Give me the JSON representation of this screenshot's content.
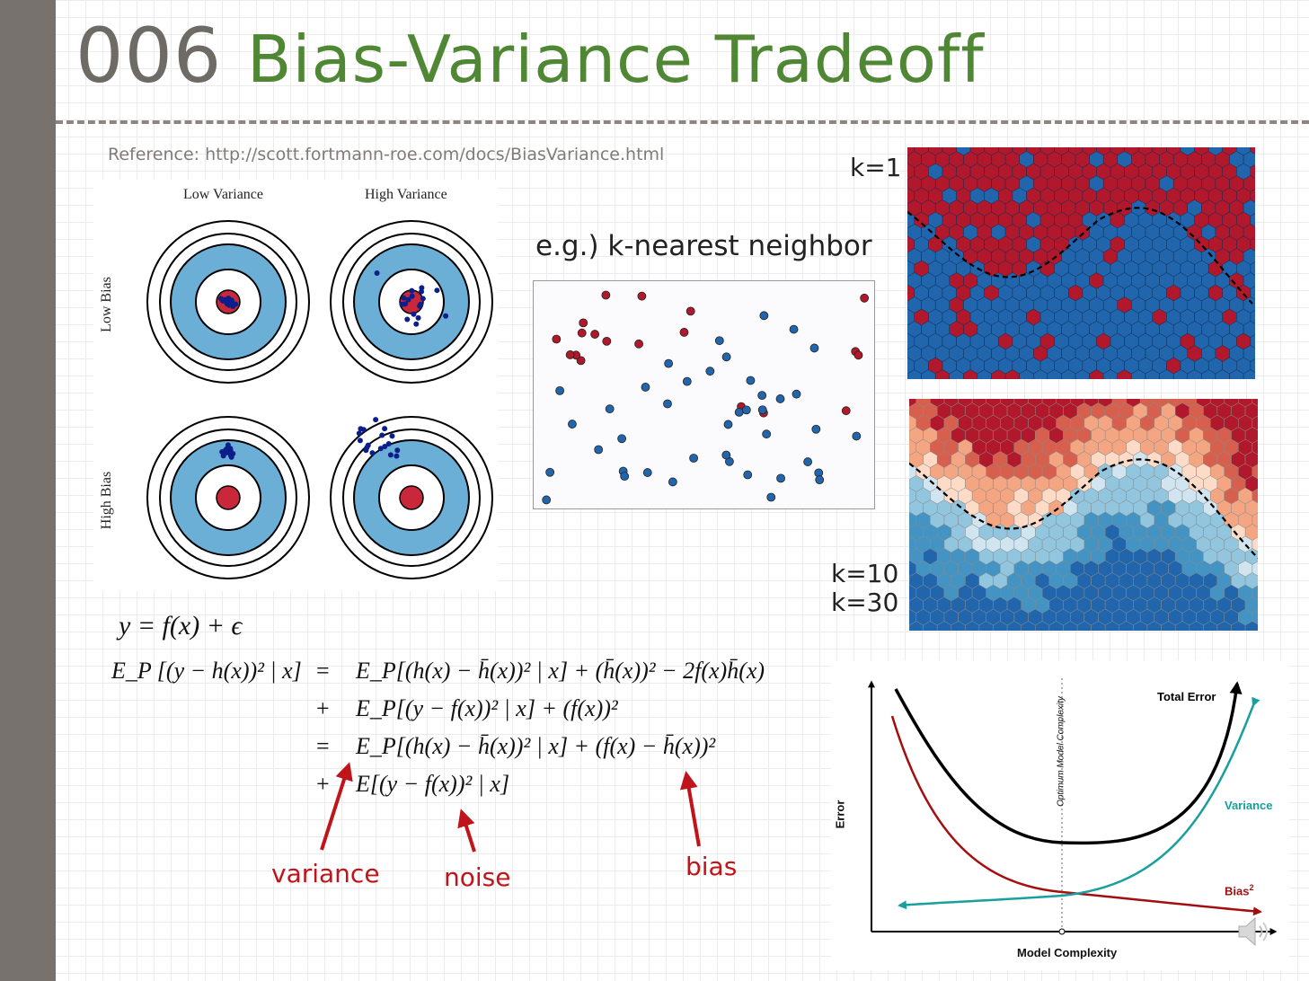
{
  "slide": {
    "number": "006",
    "title": "Bias-Variance Tradeoff",
    "reference": "Reference: http://scott.fortmann-roe.com/docs/BiasVariance.html"
  },
  "targets": {
    "col_low_variance": "Low Variance",
    "col_high_variance": "High Variance",
    "row_low_bias": "Low Bias",
    "row_high_bias": "High Bias"
  },
  "knn": {
    "caption": "e.g.) k-nearest neighbor",
    "k1": "k=1",
    "k10": "k=10",
    "k30": "k=30"
  },
  "equations": {
    "model": "y = f(x) + ϵ",
    "lhs": "E_P [(y − h(x))² | x]",
    "line1": "E_P[(h(x) − h̄(x))² | x] + (h̄(x))² − 2f(x)h̄(x)",
    "line2": "E_P[(y − f(x))² | x] + (f(x))²",
    "line3": "E_P[(h(x) − h̄(x))² | x] + (f(x) − h̄(x))²",
    "line4": "E[(y − f(x))² | x]",
    "eq_sign": "=",
    "plus_sign": "+"
  },
  "annotations": {
    "variance": "variance",
    "noise": "noise",
    "bias": "bias"
  },
  "tradeoff_chart": {
    "total_error": "Total Error",
    "variance": "Variance",
    "bias_label": "Bias",
    "bias_sup": "2",
    "optimum": "Optimum Model Complexity",
    "xlabel": "Model Complexity",
    "ylabel": "Error"
  },
  "colors": {
    "title_number": "#6e6a66",
    "title_text": "#4f8734",
    "annotation_red": "#c0141a",
    "class_red": "#b2182b",
    "class_blue": "#2166ac",
    "target_blue": "#6baed6",
    "total_error": "#000000",
    "variance_curve": "#1a9e9e",
    "bias_curve": "#a30f0f"
  }
}
